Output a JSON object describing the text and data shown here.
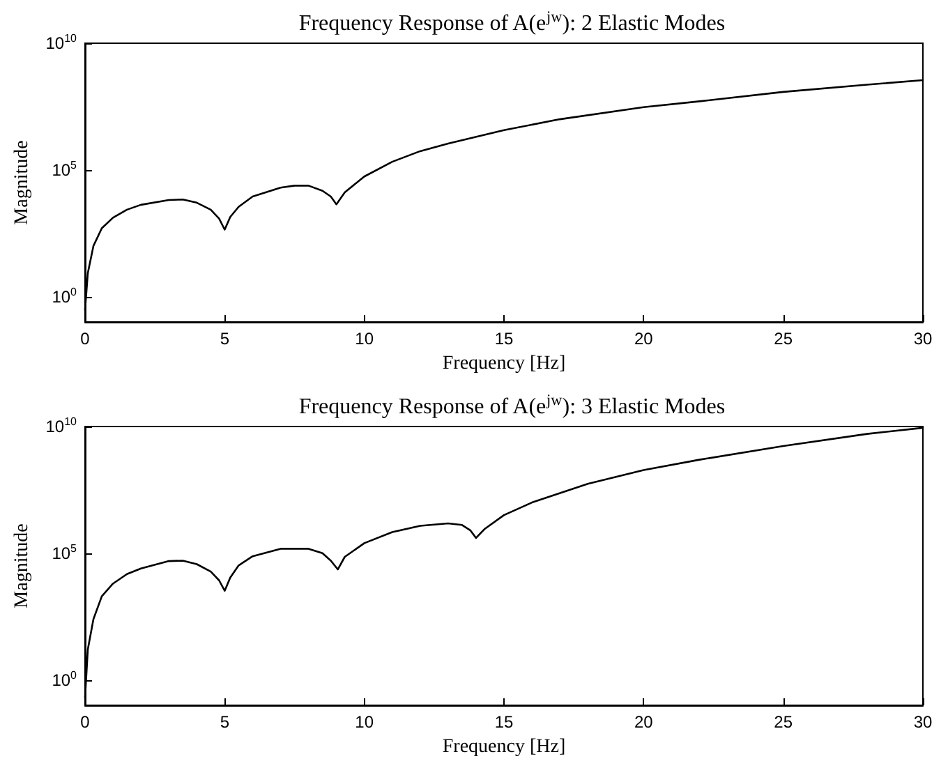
{
  "chart_data": [
    {
      "type": "line",
      "title": "Frequency Response of A(e$^{jw}$): 2 Elastic Modes",
      "xlabel": "Frequency [Hz]",
      "ylabel": "Magnitude",
      "color": "#000000",
      "marker": "none",
      "line_style": "solid",
      "grid": false,
      "log": true,
      "xlim": [
        0,
        30
      ],
      "xticks": [
        0,
        5,
        10,
        15,
        20,
        25,
        30
      ],
      "ylim": [
        0.1,
        10000000000
      ],
      "yticks": [
        {
          "value": 1,
          "label": "10$^{0}$"
        },
        {
          "value": 100000,
          "label": "10$^{5}$"
        },
        {
          "value": 10000000000,
          "label": "10$^{10}$"
        }
      ],
      "x": [
        0,
        0.1,
        0.3,
        0.6,
        1,
        1.5,
        2,
        3,
        3.5,
        4,
        4.5,
        4.8,
        5,
        5.2,
        5.5,
        6,
        7,
        7.5,
        8,
        8.5,
        8.8,
        9,
        9.3,
        10,
        11,
        12,
        13,
        15,
        17,
        20,
        22,
        25,
        28,
        30
      ],
      "values": [
        0.3,
        8.5,
        100,
        500,
        1300,
        2700,
        4200,
        6500,
        6800,
        5100,
        2700,
        1200,
        440,
        1400,
        3500,
        8900,
        20000,
        24000,
        24000,
        15000,
        8900,
        4400,
        13000,
        55000,
        210000,
        550000,
        1100000,
        3700000,
        10000000,
        30000000,
        51000000,
        120000000,
        230000000,
        350000000
      ]
    },
    {
      "type": "line",
      "title": "Frequency Response of A(e$^{jw}$): 3 Elastic Modes",
      "xlabel": "Frequency [Hz]",
      "ylabel": "Magnitude",
      "color": "#000000",
      "marker": "none",
      "line_style": "solid",
      "grid": false,
      "log": true,
      "xlim": [
        0,
        30
      ],
      "xticks": [
        0,
        5,
        10,
        15,
        20,
        25,
        30
      ],
      "ylim": [
        0.1,
        10000000000
      ],
      "yticks": [
        {
          "value": 1,
          "label": "10$^{0}$"
        },
        {
          "value": 100000,
          "label": "10$^{5}$"
        },
        {
          "value": 10000000000,
          "label": "10$^{10}$"
        }
      ],
      "x": [
        0,
        0.1,
        0.3,
        0.6,
        1,
        1.5,
        2,
        3,
        3.5,
        4,
        4.5,
        4.8,
        5,
        5.2,
        5.5,
        6,
        7,
        7.5,
        8,
        8.5,
        8.8,
        9.05,
        9.3,
        10,
        11,
        12,
        13,
        13.5,
        13.8,
        14,
        14.3,
        15,
        16,
        18,
        20,
        22,
        25,
        28,
        30
      ],
      "values": [
        0.2,
        16,
        250,
        2000,
        6300,
        15000,
        25000,
        49000,
        51000,
        37000,
        19000,
        8500,
        3300,
        11000,
        33000,
        76000,
        150000,
        150000,
        150000,
        100000,
        51000,
        23000,
        72000,
        250000,
        680000,
        1200000,
        1500000,
        1300000,
        790000,
        400000,
        890000,
        3200000,
        10000000,
        55000000,
        190000000,
        490000000,
        1700000000,
        5100000000,
        8900000000
      ]
    }
  ]
}
